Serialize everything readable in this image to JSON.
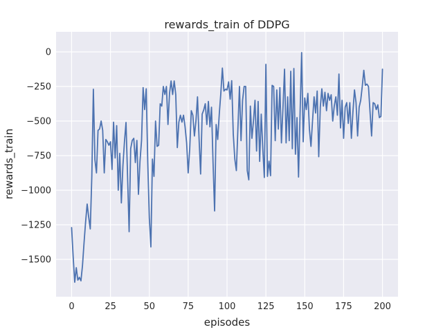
{
  "figure": {
    "title": "rewards_train of DDPG",
    "xlabel": "episodes",
    "ylabel": "rewards_train",
    "background_color": "#ffffff",
    "plot_background_color": "#eaeaf2",
    "grid_color": "#ffffff",
    "line_color": "#4c72b0",
    "text_color": "#262626"
  },
  "chart_data": {
    "type": "line",
    "title": "rewards_train of DDPG",
    "xlabel": "episodes",
    "ylabel": "rewards_train",
    "x_ticks": [
      0,
      25,
      50,
      75,
      100,
      125,
      150,
      175,
      200
    ],
    "y_ticks": [
      0,
      -250,
      -500,
      -750,
      -1000,
      -1250,
      -1500
    ],
    "xlim": [
      -10,
      210
    ],
    "ylim": [
      -1770,
      145
    ],
    "grid": true,
    "legend": false,
    "series": [
      {
        "name": "rewards_train",
        "color": "#4c72b0",
        "x_start": 0,
        "x_step": 1,
        "values": [
          -1270,
          -1480,
          -1665,
          -1560,
          -1650,
          -1630,
          -1655,
          -1545,
          -1380,
          -1230,
          -1100,
          -1195,
          -1280,
          -900,
          -270,
          -780,
          -875,
          -567,
          -558,
          -500,
          -567,
          -875,
          -633,
          -650,
          -675,
          -650,
          -850,
          -508,
          -767,
          -533,
          -1000,
          -733,
          -1092,
          -825,
          -650,
          -510,
          -900,
          -1300,
          -700,
          -640,
          -625,
          -800,
          -640,
          -1030,
          -790,
          -640,
          -258,
          -417,
          -267,
          -800,
          -1200,
          -1410,
          -775,
          -900,
          -500,
          -683,
          -675,
          -375,
          -392,
          -250,
          -308,
          -250,
          -525,
          -300,
          -210,
          -308,
          -210,
          -308,
          -692,
          -508,
          -458,
          -508,
          -458,
          -542,
          -658,
          -875,
          -700,
          -425,
          -458,
          -608,
          -500,
          -325,
          -625,
          -883,
          -450,
          -420,
          -375,
          -525,
          -358,
          -542,
          -400,
          -800,
          -1150,
          -525,
          -633,
          -450,
          -300,
          -117,
          -283,
          -270,
          -275,
          -217,
          -342,
          -208,
          -592,
          -775,
          -858,
          -550,
          -250,
          -642,
          -350,
          -250,
          -250,
          -858,
          -925,
          -392,
          -625,
          -500,
          -350,
          -717,
          -358,
          -792,
          -450,
          -700,
          -908,
          -90,
          -900,
          -790,
          -895,
          -242,
          -250,
          -642,
          -275,
          -558,
          -258,
          -658,
          -400,
          -125,
          -658,
          -325,
          -642,
          -140,
          -700,
          -120,
          -740,
          -475,
          -905,
          -440,
          -5,
          -650,
          -333,
          -417,
          -300,
          -558,
          -683,
          -500,
          -325,
          -442,
          -283,
          -758,
          -400,
          -267,
          -392,
          -292,
          -425,
          -300,
          -350,
          -310,
          -500,
          -390,
          -325,
          -458,
          -160,
          -550,
          -350,
          -625,
          -400,
          -367,
          -517,
          -367,
          -625,
          -433,
          -275,
          -367,
          -608,
          -400,
          -350,
          -250,
          -133,
          -242,
          -233,
          -250,
          -433,
          -608,
          -367,
          -375,
          -417,
          -383,
          -475,
          -467,
          -125
        ]
      }
    ]
  }
}
